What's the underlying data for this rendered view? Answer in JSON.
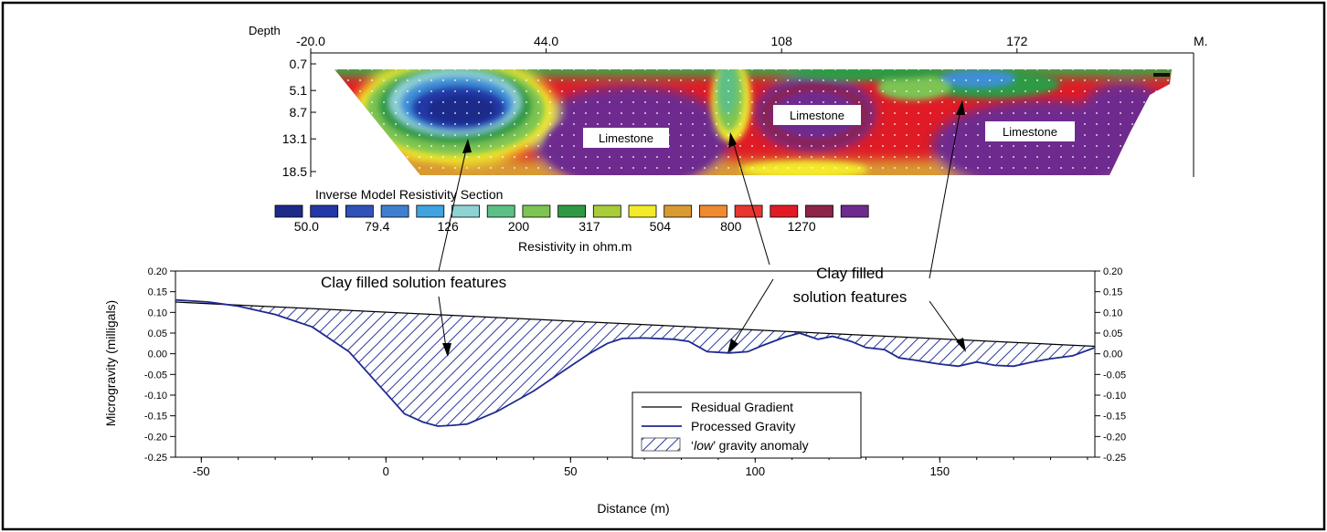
{
  "chart_data": [
    {
      "type": "heatmap",
      "title": "Inverse Model Resistivity Section",
      "xlabel": "M.",
      "ylabel": "Depth",
      "x_ticks": [
        "-20.0",
        "44.0",
        "108",
        "172"
      ],
      "x_range": [
        -20,
        220
      ],
      "y_ticks": [
        "0.7",
        "5.1",
        "8.7",
        "13.1",
        "18.5"
      ],
      "y_range": [
        0.7,
        18.5
      ],
      "annotations": [
        "Limestone",
        "Limestone",
        "Limestone"
      ],
      "colorbar": {
        "label": "Resistivity in ohm.m",
        "tick_labels": [
          "50.0",
          "79.4",
          "126",
          "200",
          "317",
          "504",
          "800",
          "1270"
        ],
        "colors": [
          "#1e2a8a",
          "#2338a8",
          "#2f52b8",
          "#3f7fd0",
          "#3da4e0",
          "#8fd2d4",
          "#5cbf86",
          "#7dc452",
          "#2f9a44",
          "#a9cc3a",
          "#f2ea2a",
          "#d99a30",
          "#f08a30",
          "#e83530",
          "#e01b25",
          "#8e2447",
          "#6e2b8f"
        ]
      }
    },
    {
      "type": "line",
      "xlabel": "Distance (m)",
      "ylabel": "Microgravity (milligals)",
      "xlim": [
        -57,
        192
      ],
      "ylim": [
        -0.25,
        0.2
      ],
      "x_ticks": [
        "-50",
        "0",
        "50",
        "100",
        "150"
      ],
      "y_ticks": [
        "0.20",
        "0.15",
        "0.10",
        "0.05",
        "0.00",
        "-0.05",
        "-0.10",
        "-0.15",
        "-0.20",
        "-0.25"
      ],
      "legend": {
        "placement": "bottom-center",
        "entries": [
          "Residual Gradient",
          "Processed Gravity",
          "low",
          "gravity anomaly"
        ],
        "prefix": "‘",
        "fill_label": "‘low’ gravity anomaly"
      },
      "series": [
        {
          "name": "Residual Gradient",
          "color": "#000000",
          "x": [
            -57,
            192
          ],
          "y": [
            0.125,
            0.018
          ]
        },
        {
          "name": "Processed Gravity",
          "color": "#1f2a8f",
          "x": [
            -57,
            -48,
            -40,
            -30,
            -20,
            -10,
            0,
            5,
            10,
            14,
            18,
            22,
            30,
            40,
            50,
            55,
            60,
            64,
            70,
            78,
            82,
            87,
            93,
            98,
            102,
            108,
            112,
            117,
            121,
            126,
            130,
            135,
            139,
            143,
            150,
            155,
            160,
            165,
            170,
            175,
            180,
            186,
            192
          ],
          "y": [
            0.13,
            0.125,
            0.115,
            0.095,
            0.065,
            0.005,
            -0.095,
            -0.145,
            -0.165,
            -0.175,
            -0.173,
            -0.17,
            -0.14,
            -0.09,
            -0.03,
            0.0,
            0.025,
            0.037,
            0.038,
            0.035,
            0.03,
            0.005,
            0.002,
            0.005,
            0.02,
            0.04,
            0.05,
            0.035,
            0.042,
            0.03,
            0.015,
            0.01,
            -0.01,
            -0.015,
            -0.025,
            -0.03,
            -0.02,
            -0.028,
            -0.03,
            -0.02,
            -0.012,
            -0.005,
            0.015
          ]
        }
      ],
      "annotations": [
        "Clay filled solution features",
        "Clay filled",
        "solution features"
      ]
    }
  ]
}
